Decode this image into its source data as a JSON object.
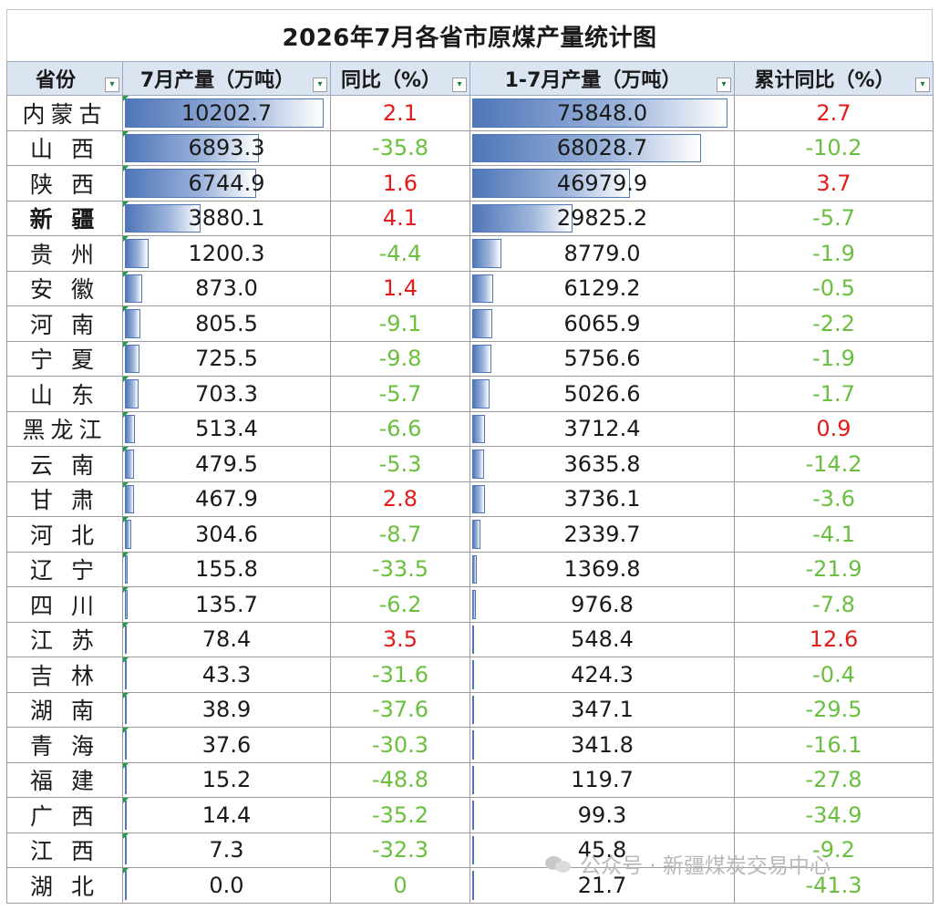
{
  "title": "2026年7月各省市原煤产量统计图",
  "headers": {
    "province": "省份",
    "jul_output": "7月产量（万吨）",
    "jul_yoy": "同比（%）",
    "ytd_output": "1-7月产量（万吨）",
    "ytd_yoy": "累计同比（%）"
  },
  "filter_icon": "dropdown-filter-icon",
  "colors": {
    "positive": "#e31b1b",
    "negative": "#6abf3f",
    "header_bg": "#dbe5f1",
    "bar": "#4f76b8"
  },
  "rows": [
    {
      "province": "内蒙古",
      "jul": "10202.7",
      "yoy": "2.1",
      "ytd": "75848.0",
      "ytd_yoy": "2.7"
    },
    {
      "province": "山 西",
      "jul": "6893.3",
      "yoy": "-35.8",
      "ytd": "68028.7",
      "ytd_yoy": "-10.2"
    },
    {
      "province": "陕 西",
      "jul": "6744.9",
      "yoy": "1.6",
      "ytd": "46979.9",
      "ytd_yoy": "3.7"
    },
    {
      "province": "新 疆",
      "jul": "3880.1",
      "yoy": "4.1",
      "ytd": "29825.2",
      "ytd_yoy": "-5.7",
      "bold": true
    },
    {
      "province": "贵 州",
      "jul": "1200.3",
      "yoy": "-4.4",
      "ytd": "8779.0",
      "ytd_yoy": "-1.9"
    },
    {
      "province": "安 徽",
      "jul": "873.0",
      "yoy": "1.4",
      "ytd": "6129.2",
      "ytd_yoy": "-0.5"
    },
    {
      "province": "河 南",
      "jul": "805.5",
      "yoy": "-9.1",
      "ytd": "6065.9",
      "ytd_yoy": "-2.2"
    },
    {
      "province": "宁 夏",
      "jul": "725.5",
      "yoy": "-9.8",
      "ytd": "5756.6",
      "ytd_yoy": "-1.9"
    },
    {
      "province": "山 东",
      "jul": "703.3",
      "yoy": "-5.7",
      "ytd": "5026.6",
      "ytd_yoy": "-1.7"
    },
    {
      "province": "黑龙江",
      "jul": "513.4",
      "yoy": "-6.6",
      "ytd": "3712.4",
      "ytd_yoy": "0.9"
    },
    {
      "province": "云 南",
      "jul": "479.5",
      "yoy": "-5.3",
      "ytd": "3635.8",
      "ytd_yoy": "-14.2"
    },
    {
      "province": "甘 肃",
      "jul": "467.9",
      "yoy": "2.8",
      "ytd": "3736.1",
      "ytd_yoy": "-3.6"
    },
    {
      "province": "河 北",
      "jul": "304.6",
      "yoy": "-8.7",
      "ytd": "2339.7",
      "ytd_yoy": "-4.1"
    },
    {
      "province": "辽 宁",
      "jul": "155.8",
      "yoy": "-33.5",
      "ytd": "1369.8",
      "ytd_yoy": "-21.9"
    },
    {
      "province": "四 川",
      "jul": "135.7",
      "yoy": "-6.2",
      "ytd": "976.8",
      "ytd_yoy": "-7.8"
    },
    {
      "province": "江 苏",
      "jul": "78.4",
      "yoy": "3.5",
      "ytd": "548.4",
      "ytd_yoy": "12.6"
    },
    {
      "province": "吉 林",
      "jul": "43.3",
      "yoy": "-31.6",
      "ytd": "424.3",
      "ytd_yoy": "-0.4"
    },
    {
      "province": "湖 南",
      "jul": "38.9",
      "yoy": "-37.6",
      "ytd": "347.1",
      "ytd_yoy": "-29.5"
    },
    {
      "province": "青 海",
      "jul": "37.6",
      "yoy": "-30.3",
      "ytd": "341.8",
      "ytd_yoy": "-16.1"
    },
    {
      "province": "福 建",
      "jul": "15.2",
      "yoy": "-48.8",
      "ytd": "119.7",
      "ytd_yoy": "-27.8"
    },
    {
      "province": "广 西",
      "jul": "14.4",
      "yoy": "-35.2",
      "ytd": "99.3",
      "ytd_yoy": "-34.9"
    },
    {
      "province": "江 西",
      "jul": "7.3",
      "yoy": "-32.3",
      "ytd": "45.8",
      "ytd_yoy": "-9.2"
    },
    {
      "province": "湖 北",
      "jul": "0.0",
      "yoy": "0",
      "ytd": "21.7",
      "ytd_yoy": "-41.3"
    }
  ],
  "watermark": {
    "icon": "wechat-icon",
    "text": "公众号 · 新疆煤炭交易中心"
  }
}
